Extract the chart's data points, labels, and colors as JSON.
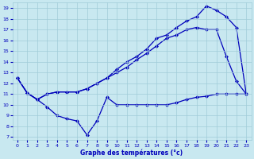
{
  "xlabel": "Graphe des températures (°c)",
  "xlim_min": -0.5,
  "xlim_max": 23.5,
  "ylim_min": 6.7,
  "ylim_max": 19.5,
  "xticks": [
    0,
    1,
    2,
    3,
    4,
    5,
    6,
    7,
    8,
    9,
    10,
    11,
    12,
    13,
    14,
    15,
    16,
    17,
    18,
    19,
    20,
    21,
    22,
    23
  ],
  "yticks": [
    7,
    8,
    9,
    10,
    11,
    12,
    13,
    14,
    15,
    16,
    17,
    18,
    19
  ],
  "line_color": "#0000bb",
  "bg_color": "#c8e8f0",
  "grid_color": "#a0ccd8",
  "series": [
    {
      "x": [
        0,
        1,
        2,
        3,
        4,
        5,
        6,
        7,
        8,
        9,
        10,
        11,
        12,
        13,
        14,
        15,
        16,
        17,
        18,
        19,
        20,
        21,
        22,
        23
      ],
      "y": [
        12.5,
        11.1,
        10.5,
        9.8,
        9.0,
        8.7,
        8.5,
        7.2,
        8.5,
        10.7,
        10.0,
        10.0,
        10.0,
        10.0,
        10.0,
        10.0,
        10.2,
        10.5,
        10.7,
        10.8,
        11.0,
        11.0,
        11.0,
        11.0
      ]
    },
    {
      "x": [
        0,
        1,
        2,
        3,
        4,
        5,
        6,
        7,
        8,
        9,
        10,
        11,
        12,
        13,
        14,
        15,
        16,
        17,
        18,
        19,
        20,
        21,
        22,
        23
      ],
      "y": [
        12.5,
        11.1,
        10.5,
        11.0,
        11.2,
        11.2,
        11.2,
        11.5,
        12.0,
        12.5,
        13.0,
        13.5,
        14.2,
        14.8,
        15.5,
        16.2,
        16.5,
        17.0,
        17.2,
        17.0,
        17.0,
        14.5,
        12.2,
        11.0
      ]
    },
    {
      "x": [
        0,
        1,
        2,
        3,
        4,
        5,
        6,
        7,
        8,
        9,
        10,
        11,
        12,
        13,
        14,
        15,
        16,
        17,
        18,
        19,
        20,
        21,
        22,
        23
      ],
      "y": [
        12.5,
        11.1,
        10.5,
        11.0,
        11.2,
        11.2,
        11.2,
        11.5,
        12.0,
        12.5,
        13.3,
        14.0,
        14.5,
        15.2,
        16.2,
        16.5,
        17.2,
        17.8,
        18.2,
        19.2,
        18.8,
        18.2,
        17.2,
        11.0
      ]
    }
  ]
}
